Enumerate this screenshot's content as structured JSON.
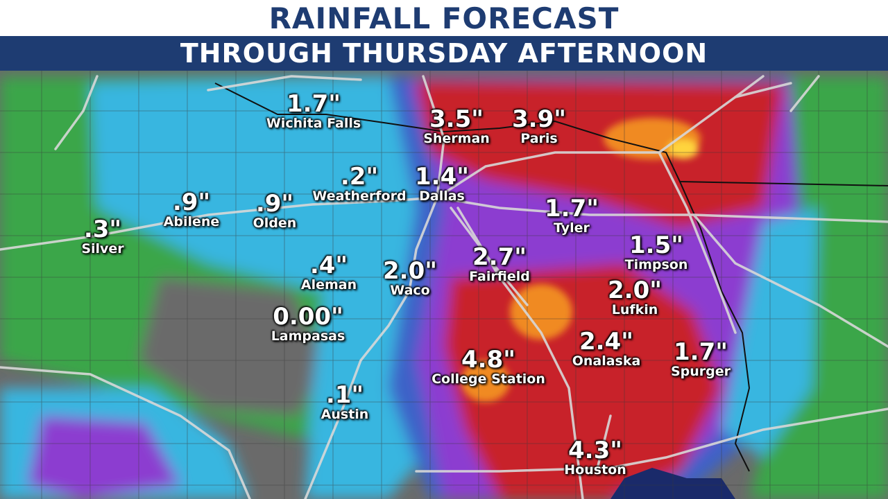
{
  "header": {
    "title": "RAINFALL FORECAST",
    "subtitle": "THROUGH THURSDAY AFTERNOON"
  },
  "colors": {
    "title_bar": "#ffffff",
    "title_text": "#1e3c72",
    "subtitle_bar": "#1e3c72",
    "subtitle_text": "#ffffff",
    "no_rain": "#6a6a6a",
    "light": "#3aa64a",
    "moderate": "#38b6e0",
    "medium": "#3e62c8",
    "heavy": "#8c3cd0",
    "very_heavy": "#c8202a",
    "extreme": "#f08a24"
  },
  "locations": [
    {
      "city": "Wichita Falls",
      "amount": "1.7\""
    },
    {
      "city": "Sherman",
      "amount": "3.5\""
    },
    {
      "city": "Paris",
      "amount": "3.9\""
    },
    {
      "city": "Weatherford",
      "amount": ".2\""
    },
    {
      "city": "Dallas",
      "amount": "1.4\""
    },
    {
      "city": "Abilene",
      "amount": ".9\""
    },
    {
      "city": "Olden",
      "amount": ".9\""
    },
    {
      "city": "Silver",
      "amount": ".3\""
    },
    {
      "city": "Tyler",
      "amount": "1.7\""
    },
    {
      "city": "Timpson",
      "amount": "1.5\""
    },
    {
      "city": "Aleman",
      "amount": ".4\""
    },
    {
      "city": "Waco",
      "amount": "2.0\""
    },
    {
      "city": "Fairfield",
      "amount": "2.7\""
    },
    {
      "city": "Lufkin",
      "amount": "2.0\""
    },
    {
      "city": "Lampasas",
      "amount": "0.00\""
    },
    {
      "city": "Onalaska",
      "amount": "2.4\""
    },
    {
      "city": "Spurger",
      "amount": "1.7\""
    },
    {
      "city": "College Station",
      "amount": "4.8\""
    },
    {
      "city": "Austin",
      "amount": ".1\""
    },
    {
      "city": "Houston",
      "amount": "4.3\""
    }
  ]
}
